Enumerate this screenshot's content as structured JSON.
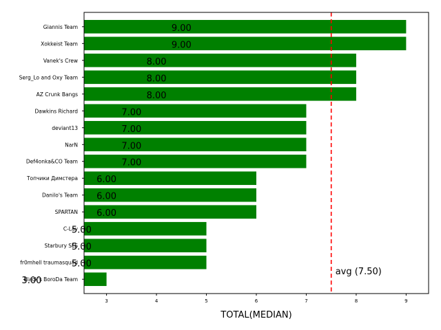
{
  "chart_data": {
    "type": "bar",
    "orientation": "horizontal",
    "categories": [
      "Giannis Team",
      "Xokkeist Team",
      "Vanek's Crew",
      "Serg_Lo and Oxy Team",
      "AZ Crunk Bangs",
      "Dawkins Richard",
      "deviant13",
      "NarN",
      "Def4onka&CO Team",
      "Топчики Димстера",
      "Danilo's Team",
      "SPARTAN",
      "C-Lav",
      "Starbury SLS",
      "fr0mhell traumasquad",
      "Black's BoroDa Team"
    ],
    "values": [
      9,
      9,
      8,
      8,
      8,
      7,
      7,
      7,
      7,
      6,
      6,
      6,
      5,
      5,
      5,
      3
    ],
    "value_labels": [
      "9.00",
      "9.00",
      "8.00",
      "8.00",
      "8.00",
      "7.00",
      "7.00",
      "7.00",
      "7.00",
      "6.00",
      "6.00",
      "6.00",
      "5.00",
      "5.00",
      "5.00",
      "3.00"
    ],
    "xlabel": "TOTAL(MEDIAN)",
    "ylabel": "",
    "title": "",
    "xlim": [
      2.55,
      9.45
    ],
    "x_ticks": [
      3,
      4,
      5,
      6,
      7,
      8,
      9
    ],
    "reference_line": {
      "value": 7.5,
      "label": "avg (7.50)",
      "style": "dashed"
    },
    "bar_color": "#008000",
    "reference_color": "#ff0000",
    "grid": false,
    "legend": "none"
  }
}
